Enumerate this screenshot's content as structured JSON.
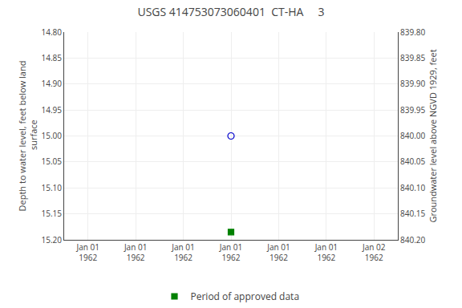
{
  "chart_data": {
    "type": "scatter",
    "title": "USGS 414753073060401  CT-HA     3",
    "ylabel": "Depth to water level, feet below land\n surface",
    "y2label": "Groundwater level above NGVD 1929, feet",
    "categories": [
      "Jan 01\n1962",
      "Jan 01\n1962",
      "Jan 01\n1962",
      "Jan 01\n1962",
      "Jan 01\n1962",
      "Jan 01\n1962",
      "Jan 02\n1962"
    ],
    "series": [
      {
        "color": "#0000cc",
        "marker": "open_circle",
        "values": [
          null,
          null,
          null,
          15.0,
          null,
          null,
          null
        ]
      },
      {
        "name": "Period of approved data",
        "color": "#008000",
        "marker": "square",
        "values": [
          null,
          null,
          null,
          15.185,
          null,
          null,
          null
        ]
      }
    ],
    "ylim": [
      15.2,
      14.8
    ],
    "yticks": [
      {
        "value": 14.8,
        "label": "14.80"
      },
      {
        "value": 14.85,
        "label": "14.85"
      },
      {
        "value": 14.9,
        "label": "14.90"
      },
      {
        "value": 14.95,
        "label": "14.95"
      },
      {
        "value": 15.0,
        "label": "15.00"
      },
      {
        "value": 15.05,
        "label": "15.05"
      },
      {
        "value": 15.1,
        "label": "15.10"
      },
      {
        "value": 15.15,
        "label": "15.15"
      },
      {
        "value": 15.2,
        "label": "15.20"
      }
    ],
    "y2lim": [
      840.2,
      839.8
    ],
    "y2ticks": [
      {
        "value": 840.2,
        "label": "840.20"
      },
      {
        "value": 840.15,
        "label": "840.15"
      },
      {
        "value": 840.1,
        "label": "840.10"
      },
      {
        "value": 840.05,
        "label": "840.05"
      },
      {
        "value": 840.0,
        "label": "840.00"
      },
      {
        "value": 839.95,
        "label": "839.95"
      },
      {
        "value": 839.9,
        "label": "839.90"
      },
      {
        "value": 839.85,
        "label": "839.85"
      },
      {
        "value": 839.8,
        "label": "839.80"
      }
    ],
    "grid": true,
    "legend": "bottom"
  }
}
